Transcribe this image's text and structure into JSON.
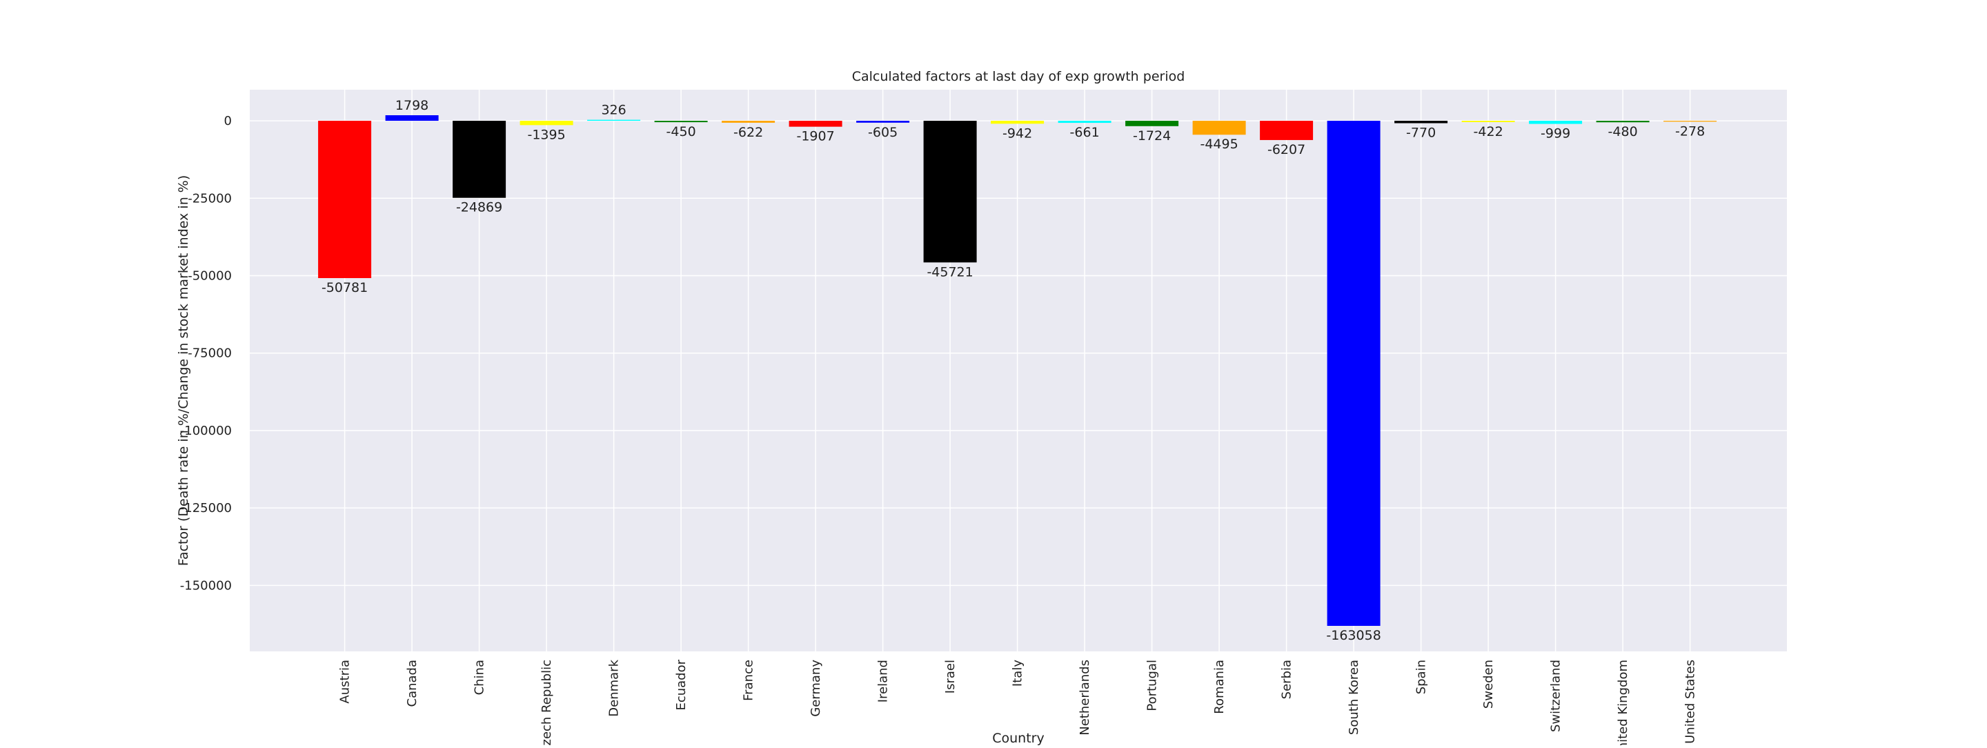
{
  "chart_data": {
    "type": "bar",
    "title": "Calculated factors at last day of exp growth period",
    "ylabel": "Factor (Death rate in %/Change in stock market index in %)",
    "xlabel": "Country",
    "categories": [
      "Austria",
      "Canada",
      "China",
      "Czech Republic",
      "Denmark",
      "Ecuador",
      "France",
      "Germany",
      "Ireland",
      "Israel",
      "Italy",
      "Netherlands",
      "Portugal",
      "Romania",
      "Serbia",
      "South Korea",
      "Spain",
      "Sweden",
      "Switzerland",
      "United Kingdom",
      "United States"
    ],
    "values": [
      -50781,
      1798,
      -24869,
      -1395,
      326,
      -450,
      -622,
      -1907,
      -605,
      -45721,
      -942,
      -661,
      -1724,
      -4495,
      -6207,
      -163058,
      -770,
      -422,
      -999,
      -480,
      -278
    ],
    "colors": [
      "#ff0000",
      "#0000ff",
      "#000000",
      "#ffff00",
      "#00ffff",
      "#008000",
      "#ffa500",
      "#ff0000",
      "#0000ff",
      "#000000",
      "#ffff00",
      "#00ffff",
      "#008000",
      "#ffa500",
      "#ff0000",
      "#0000ff",
      "#000000",
      "#ffff00",
      "#00ffff",
      "#008000",
      "#ffa500"
    ],
    "ylim": [
      -171301,
      10041
    ],
    "yticks": [
      0,
      -25000,
      -50000,
      -75000,
      -100000,
      -125000,
      -150000
    ],
    "grid": true
  }
}
